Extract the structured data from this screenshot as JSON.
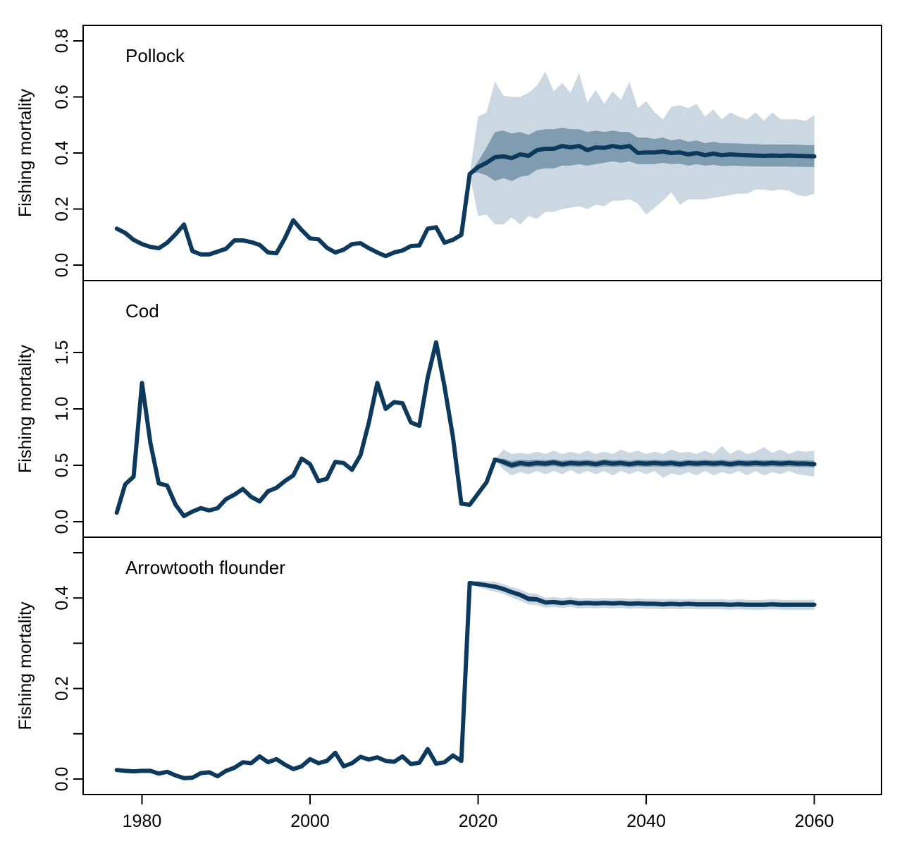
{
  "chart_data": [
    {
      "type": "line",
      "title": "Pollock",
      "ylabel": "Fishing mortality",
      "ylim": [
        0,
        0.8
      ],
      "yticks": [
        0.0,
        0.2,
        0.4,
        0.6,
        0.8
      ],
      "ytick_labels": [
        "0.0",
        "0.2",
        "0.4",
        "0.6",
        "0.8"
      ],
      "hist_x": [
        1977,
        1978,
        1979,
        1980,
        1981,
        1982,
        1983,
        1984,
        1985,
        1986,
        1987,
        1988,
        1989,
        1990,
        1991,
        1992,
        1993,
        1994,
        1995,
        1996,
        1997,
        1998,
        1999,
        2000,
        2001,
        2002,
        2003,
        2004,
        2005,
        2006,
        2007,
        2008,
        2009,
        2010,
        2011,
        2012,
        2013,
        2014,
        2015,
        2016,
        2017,
        2018,
        2019
      ],
      "hist_y": [
        0.13,
        0.115,
        0.09,
        0.075,
        0.065,
        0.06,
        0.08,
        0.11,
        0.145,
        0.05,
        0.038,
        0.038,
        0.048,
        0.058,
        0.088,
        0.088,
        0.082,
        0.072,
        0.045,
        0.042,
        0.095,
        0.16,
        0.125,
        0.095,
        0.092,
        0.062,
        0.045,
        0.055,
        0.075,
        0.078,
        0.06,
        0.045,
        0.032,
        0.045,
        0.052,
        0.068,
        0.07,
        0.13,
        0.135,
        0.08,
        0.09,
        0.108,
        0.325
      ],
      "proj_x": [
        2019,
        2020,
        2021,
        2022,
        2023,
        2024,
        2025,
        2026,
        2027,
        2028,
        2029,
        2030,
        2031,
        2032,
        2033,
        2034,
        2035,
        2036,
        2037,
        2038,
        2039,
        2040,
        2041,
        2042,
        2043,
        2044,
        2045,
        2046,
        2047,
        2048,
        2049,
        2050,
        2051,
        2052,
        2053,
        2054,
        2055,
        2056,
        2057,
        2058,
        2059,
        2060
      ],
      "median": [
        0.325,
        0.35,
        0.365,
        0.385,
        0.388,
        0.382,
        0.395,
        0.39,
        0.41,
        0.415,
        0.415,
        0.425,
        0.42,
        0.425,
        0.41,
        0.42,
        0.418,
        0.425,
        0.42,
        0.425,
        0.4,
        0.402,
        0.402,
        0.405,
        0.4,
        0.402,
        0.395,
        0.4,
        0.392,
        0.398,
        0.392,
        0.395,
        0.393,
        0.392,
        0.391,
        0.39,
        0.391,
        0.39,
        0.391,
        0.39,
        0.389,
        0.388
      ],
      "inner_low": [
        0.325,
        0.33,
        0.32,
        0.3,
        0.31,
        0.3,
        0.315,
        0.32,
        0.34,
        0.345,
        0.345,
        0.355,
        0.355,
        0.36,
        0.355,
        0.36,
        0.365,
        0.37,
        0.365,
        0.37,
        0.36,
        0.36,
        0.36,
        0.365,
        0.36,
        0.362,
        0.355,
        0.36,
        0.355,
        0.358,
        0.353,
        0.355,
        0.354,
        0.353,
        0.352,
        0.352,
        0.352,
        0.352,
        0.351,
        0.351,
        0.35,
        0.35
      ],
      "inner_high": [
        0.325,
        0.37,
        0.42,
        0.475,
        0.48,
        0.47,
        0.475,
        0.465,
        0.48,
        0.485,
        0.485,
        0.49,
        0.485,
        0.485,
        0.475,
        0.48,
        0.475,
        0.48,
        0.475,
        0.475,
        0.455,
        0.455,
        0.45,
        0.455,
        0.445,
        0.45,
        0.44,
        0.445,
        0.435,
        0.44,
        0.435,
        0.435,
        0.434,
        0.432,
        0.432,
        0.43,
        0.431,
        0.43,
        0.43,
        0.43,
        0.428,
        0.428
      ],
      "outer_low": [
        0.325,
        0.175,
        0.18,
        0.145,
        0.145,
        0.17,
        0.145,
        0.175,
        0.165,
        0.19,
        0.19,
        0.2,
        0.205,
        0.21,
        0.2,
        0.215,
        0.21,
        0.23,
        0.23,
        0.235,
        0.22,
        0.18,
        0.205,
        0.23,
        0.26,
        0.215,
        0.235,
        0.235,
        0.235,
        0.24,
        0.245,
        0.25,
        0.255,
        0.255,
        0.27,
        0.27,
        0.265,
        0.27,
        0.265,
        0.25,
        0.245,
        0.255
      ],
      "outer_high": [
        0.325,
        0.53,
        0.545,
        0.655,
        0.605,
        0.6,
        0.6,
        0.615,
        0.64,
        0.69,
        0.62,
        0.65,
        0.615,
        0.685,
        0.58,
        0.625,
        0.575,
        0.62,
        0.59,
        0.655,
        0.56,
        0.585,
        0.545,
        0.52,
        0.565,
        0.57,
        0.56,
        0.575,
        0.53,
        0.555,
        0.52,
        0.545,
        0.53,
        0.52,
        0.545,
        0.515,
        0.545,
        0.52,
        0.52,
        0.52,
        0.515,
        0.535
      ]
    },
    {
      "type": "line",
      "title": "Cod",
      "ylabel": "Fishing mortality",
      "ylim": [
        0,
        2.0
      ],
      "yticks": [
        0.0,
        0.5,
        1.0,
        1.5
      ],
      "ytick_labels": [
        "0.0",
        "0.5",
        "1.0",
        "1.5"
      ],
      "hist_x": [
        1977,
        1978,
        1979,
        1980,
        1981,
        1982,
        1983,
        1984,
        1985,
        1986,
        1987,
        1988,
        1989,
        1990,
        1991,
        1992,
        1993,
        1994,
        1995,
        1996,
        1997,
        1998,
        1999,
        2000,
        2001,
        2002,
        2003,
        2004,
        2005,
        2006,
        2007,
        2008,
        2009,
        2010,
        2011,
        2012,
        2013,
        2014,
        2015,
        2016,
        2017,
        2018,
        2019,
        2020,
        2021,
        2022
      ],
      "hist_y": [
        0.08,
        0.33,
        0.4,
        1.23,
        0.7,
        0.34,
        0.32,
        0.15,
        0.05,
        0.09,
        0.12,
        0.1,
        0.12,
        0.2,
        0.24,
        0.29,
        0.22,
        0.18,
        0.27,
        0.3,
        0.36,
        0.41,
        0.56,
        0.51,
        0.36,
        0.38,
        0.53,
        0.52,
        0.46,
        0.59,
        0.88,
        1.23,
        1.0,
        1.06,
        1.05,
        0.88,
        0.85,
        1.28,
        1.59,
        1.2,
        0.75,
        0.16,
        0.15,
        0.25,
        0.35,
        0.55
      ],
      "proj_x": [
        2022,
        2023,
        2024,
        2025,
        2026,
        2027,
        2028,
        2029,
        2030,
        2031,
        2032,
        2033,
        2034,
        2035,
        2036,
        2037,
        2038,
        2039,
        2040,
        2041,
        2042,
        2043,
        2044,
        2045,
        2046,
        2047,
        2048,
        2049,
        2050,
        2051,
        2052,
        2053,
        2054,
        2055,
        2056,
        2057,
        2058,
        2059,
        2060
      ],
      "median": [
        0.55,
        0.53,
        0.5,
        0.52,
        0.51,
        0.52,
        0.515,
        0.525,
        0.51,
        0.52,
        0.515,
        0.52,
        0.51,
        0.525,
        0.515,
        0.52,
        0.51,
        0.52,
        0.515,
        0.52,
        0.515,
        0.52,
        0.51,
        0.52,
        0.515,
        0.52,
        0.515,
        0.52,
        0.51,
        0.52,
        0.515,
        0.52,
        0.515,
        0.52,
        0.515,
        0.52,
        0.515,
        0.515,
        0.51
      ],
      "inner_low": [
        0.55,
        0.5,
        0.47,
        0.49,
        0.48,
        0.49,
        0.485,
        0.495,
        0.48,
        0.49,
        0.485,
        0.49,
        0.48,
        0.49,
        0.485,
        0.49,
        0.48,
        0.49,
        0.485,
        0.49,
        0.485,
        0.49,
        0.48,
        0.49,
        0.485,
        0.49,
        0.485,
        0.49,
        0.48,
        0.49,
        0.485,
        0.49,
        0.485,
        0.49,
        0.485,
        0.49,
        0.485,
        0.485,
        0.48
      ],
      "inner_high": [
        0.55,
        0.56,
        0.535,
        0.55,
        0.545,
        0.55,
        0.545,
        0.555,
        0.54,
        0.55,
        0.545,
        0.55,
        0.54,
        0.555,
        0.545,
        0.55,
        0.54,
        0.55,
        0.545,
        0.55,
        0.545,
        0.55,
        0.54,
        0.55,
        0.545,
        0.55,
        0.545,
        0.55,
        0.54,
        0.55,
        0.545,
        0.55,
        0.545,
        0.55,
        0.545,
        0.55,
        0.545,
        0.545,
        0.54
      ],
      "outer_low": [
        0.55,
        0.46,
        0.41,
        0.44,
        0.42,
        0.45,
        0.42,
        0.45,
        0.42,
        0.46,
        0.42,
        0.45,
        0.42,
        0.45,
        0.41,
        0.45,
        0.42,
        0.45,
        0.42,
        0.45,
        0.39,
        0.43,
        0.41,
        0.44,
        0.41,
        0.45,
        0.41,
        0.44,
        0.42,
        0.45,
        0.41,
        0.45,
        0.41,
        0.44,
        0.42,
        0.45,
        0.42,
        0.41,
        0.4
      ],
      "outer_high": [
        0.55,
        0.64,
        0.6,
        0.61,
        0.6,
        0.62,
        0.6,
        0.63,
        0.6,
        0.62,
        0.6,
        0.63,
        0.6,
        0.62,
        0.6,
        0.64,
        0.61,
        0.63,
        0.6,
        0.62,
        0.6,
        0.64,
        0.61,
        0.62,
        0.6,
        0.63,
        0.6,
        0.67,
        0.6,
        0.64,
        0.6,
        0.62,
        0.66,
        0.61,
        0.64,
        0.6,
        0.63,
        0.62,
        0.63
      ]
    },
    {
      "type": "line",
      "title": "Arrowtooth flounder",
      "ylabel": "Fishing mortality",
      "ylim": [
        0,
        0.5
      ],
      "yticks": [
        0.0,
        0.1,
        0.2,
        0.3,
        0.4,
        0.5
      ],
      "ytick_labels": [
        "0.0",
        "",
        "0.2",
        "",
        "0.4",
        ""
      ],
      "hist_x": [
        1977,
        1978,
        1979,
        1980,
        1981,
        1982,
        1983,
        1984,
        1985,
        1986,
        1987,
        1988,
        1989,
        1990,
        1991,
        1992,
        1993,
        1994,
        1995,
        1996,
        1997,
        1998,
        1999,
        2000,
        2001,
        2002,
        2003,
        2004,
        2005,
        2006,
        2007,
        2008,
        2009,
        2010,
        2011,
        2012,
        2013,
        2014,
        2015,
        2016,
        2017,
        2018,
        2019
      ],
      "hist_y": [
        0.02,
        0.018,
        0.017,
        0.018,
        0.018,
        0.012,
        0.016,
        0.008,
        0.002,
        0.003,
        0.013,
        0.015,
        0.006,
        0.018,
        0.025,
        0.037,
        0.035,
        0.05,
        0.037,
        0.044,
        0.032,
        0.022,
        0.028,
        0.044,
        0.035,
        0.04,
        0.058,
        0.028,
        0.035,
        0.049,
        0.043,
        0.048,
        0.04,
        0.038,
        0.05,
        0.033,
        0.036,
        0.066,
        0.034,
        0.037,
        0.052,
        0.04,
        0.433
      ],
      "proj_x": [
        2019,
        2020,
        2021,
        2022,
        2023,
        2024,
        2025,
        2026,
        2027,
        2028,
        2029,
        2030,
        2031,
        2032,
        2033,
        2034,
        2035,
        2036,
        2037,
        2038,
        2039,
        2040,
        2041,
        2042,
        2043,
        2044,
        2045,
        2046,
        2047,
        2048,
        2049,
        2050,
        2051,
        2052,
        2053,
        2054,
        2055,
        2056,
        2057,
        2058,
        2059,
        2060
      ],
      "median": [
        0.433,
        0.431,
        0.428,
        0.425,
        0.42,
        0.413,
        0.407,
        0.398,
        0.397,
        0.39,
        0.391,
        0.389,
        0.391,
        0.388,
        0.389,
        0.388,
        0.389,
        0.388,
        0.389,
        0.387,
        0.388,
        0.387,
        0.387,
        0.386,
        0.387,
        0.386,
        0.387,
        0.386,
        0.386,
        0.386,
        0.386,
        0.385,
        0.386,
        0.385,
        0.385,
        0.385,
        0.386,
        0.385,
        0.385,
        0.385,
        0.385,
        0.385
      ],
      "inner_low": [
        0.433,
        0.428,
        0.424,
        0.42,
        0.415,
        0.408,
        0.401,
        0.392,
        0.391,
        0.385,
        0.386,
        0.384,
        0.386,
        0.383,
        0.384,
        0.383,
        0.384,
        0.383,
        0.384,
        0.382,
        0.383,
        0.382,
        0.382,
        0.381,
        0.382,
        0.381,
        0.382,
        0.381,
        0.381,
        0.381,
        0.381,
        0.38,
        0.381,
        0.38,
        0.38,
        0.38,
        0.381,
        0.38,
        0.38,
        0.38,
        0.38,
        0.38
      ],
      "inner_high": [
        0.433,
        0.434,
        0.432,
        0.43,
        0.425,
        0.418,
        0.412,
        0.404,
        0.402,
        0.395,
        0.396,
        0.394,
        0.396,
        0.393,
        0.394,
        0.393,
        0.394,
        0.393,
        0.394,
        0.392,
        0.393,
        0.392,
        0.392,
        0.391,
        0.392,
        0.391,
        0.392,
        0.391,
        0.391,
        0.391,
        0.391,
        0.39,
        0.391,
        0.39,
        0.39,
        0.39,
        0.391,
        0.39,
        0.39,
        0.39,
        0.39,
        0.39
      ],
      "outer_low": [
        0.433,
        0.424,
        0.419,
        0.414,
        0.409,
        0.401,
        0.394,
        0.386,
        0.384,
        0.379,
        0.38,
        0.378,
        0.38,
        0.377,
        0.378,
        0.377,
        0.378,
        0.377,
        0.378,
        0.376,
        0.377,
        0.376,
        0.376,
        0.375,
        0.376,
        0.375,
        0.376,
        0.375,
        0.375,
        0.375,
        0.375,
        0.374,
        0.375,
        0.374,
        0.374,
        0.374,
        0.375,
        0.374,
        0.374,
        0.374,
        0.374,
        0.374
      ],
      "outer_high": [
        0.433,
        0.438,
        0.437,
        0.436,
        0.431,
        0.424,
        0.419,
        0.411,
        0.409,
        0.401,
        0.402,
        0.4,
        0.402,
        0.399,
        0.4,
        0.399,
        0.4,
        0.399,
        0.4,
        0.398,
        0.399,
        0.398,
        0.398,
        0.397,
        0.398,
        0.397,
        0.398,
        0.397,
        0.397,
        0.397,
        0.397,
        0.396,
        0.397,
        0.396,
        0.396,
        0.396,
        0.397,
        0.396,
        0.396,
        0.396,
        0.396,
        0.396
      ]
    }
  ],
  "x_axis": {
    "xlim": [
      1973,
      2068
    ],
    "ticks": [
      1980,
      2000,
      2020,
      2040,
      2060
    ],
    "tick_labels": [
      "1980",
      "2000",
      "2020",
      "2040",
      "2060"
    ]
  },
  "colors": {
    "line": "#0d3a5c",
    "inner_band": "#7f9cb1",
    "outer_band": "#cbd7e1",
    "axis": "#000000"
  }
}
